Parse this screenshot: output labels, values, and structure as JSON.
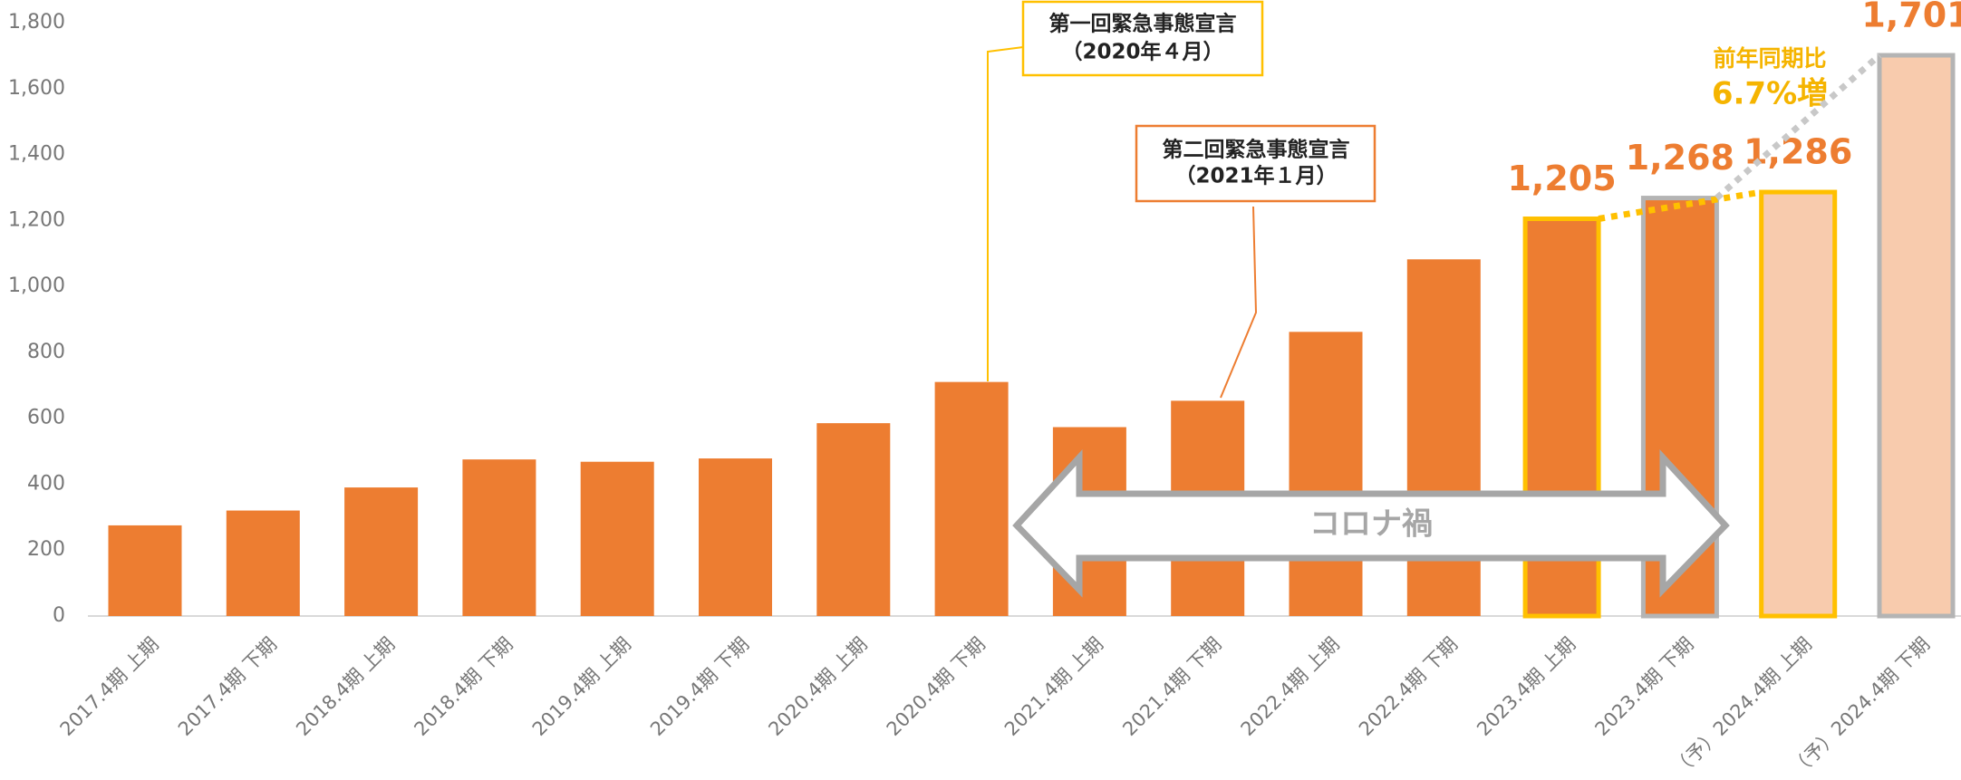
{
  "chart_data": {
    "type": "bar",
    "categories": [
      "2017.4期 上期",
      "2017.4期 下期",
      "2018.4期 上期",
      "2018.4期 下期",
      "2019.4期 上期",
      "2019.4期 下期",
      "2020.4期 上期",
      "2020.4期 下期",
      "2021.4期 上期",
      "2021.4期 下期",
      "2022.4期 上期",
      "2022.4期 下期",
      "2023.4期 上期",
      "2023.4期 下期",
      "（予）2024.4期 上期",
      "（予）2024.4期 下期"
    ],
    "values": [
      275,
      320,
      390,
      475,
      468,
      478,
      585,
      710,
      573,
      653,
      862,
      1082,
      1205,
      1268,
      1286,
      1701
    ],
    "value_labels": [
      null,
      null,
      null,
      null,
      null,
      null,
      null,
      null,
      null,
      null,
      null,
      null,
      "1,205",
      "1,268",
      "1,286",
      "1,701"
    ],
    "bar_colors": [
      "#ed7d31",
      "#ed7d31",
      "#ed7d31",
      "#ed7d31",
      "#ed7d31",
      "#ed7d31",
      "#ed7d31",
      "#ed7d31",
      "#ed7d31",
      "#ed7d31",
      "#ed7d31",
      "#ed7d31",
      "#ed7d31",
      "#ed7d31",
      "#f8cbad",
      "#f8cbad"
    ],
    "bar_outlines": [
      null,
      null,
      null,
      null,
      null,
      null,
      null,
      null,
      null,
      null,
      null,
      null,
      "#ffc000",
      "#b4b4b4",
      "#ffc000",
      "#b4b4b4"
    ],
    "ylim": [
      0,
      1800
    ],
    "yticks": [
      0,
      200,
      400,
      600,
      800,
      {
        "value": 1000,
        "label": "1,000"
      },
      {
        "value": 1200,
        "label": "1,200"
      },
      {
        "value": 1400,
        "label": "1,400"
      },
      {
        "value": 1600,
        "label": "1,600"
      },
      {
        "value": 1800,
        "label": "1,800"
      }
    ],
    "annotations": {
      "first_emergency": [
        "第一回緊急事態宣言",
        "（2020年４月）"
      ],
      "second_emergency": [
        "第二回緊急事態宣言",
        "（2021年１月）"
      ],
      "growth": [
        "前年同期比",
        "6.7%増"
      ],
      "covid": "コロナ禍"
    }
  }
}
